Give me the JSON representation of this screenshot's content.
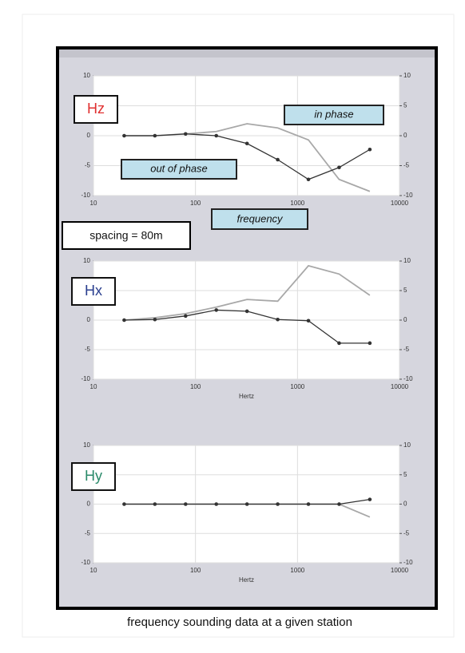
{
  "caption": "frequency sounding data at a given station",
  "spacing_label": "spacing = 80m",
  "frequency_label": "frequency",
  "chart_data": [
    {
      "type": "line",
      "title": "Hz",
      "title_color": "#e03030",
      "log_x": true,
      "grid": true,
      "x": [
        20,
        40,
        80,
        160,
        320,
        640,
        1280,
        2560,
        5120
      ],
      "xlim": [
        10,
        10000
      ],
      "xticks": [
        10,
        100,
        1000,
        10000
      ],
      "ylim": [
        -10,
        10
      ],
      "yticks": [
        -10,
        -5,
        0,
        5,
        10
      ],
      "y2lim": [
        -10,
        10
      ],
      "y2ticks": [
        -10,
        -5,
        0,
        5,
        10
      ],
      "series": [
        {
          "name": "in phase",
          "color": "#a8a8a8",
          "markers": false,
          "values": [
            0,
            0,
            0.3,
            0.7,
            2,
            1.3,
            -0.7,
            -7.3,
            -9.3
          ]
        },
        {
          "name": "out of phase",
          "color": "#333333",
          "markers": true,
          "values": [
            0,
            0,
            0.3,
            0,
            -1.3,
            -4,
            -7.3,
            -5.3,
            -2.3
          ]
        }
      ]
    },
    {
      "type": "line",
      "title": "Hx",
      "title_color": "#2a3f8f",
      "log_x": true,
      "grid": true,
      "xlabel": "Hertz",
      "x": [
        20,
        40,
        80,
        160,
        320,
        640,
        1280,
        2560,
        5120
      ],
      "xlim": [
        10,
        10000
      ],
      "xticks": [
        10,
        100,
        1000,
        10000
      ],
      "ylim": [
        -10,
        10
      ],
      "yticks": [
        -10,
        -5,
        0,
        5,
        10
      ],
      "y2lim": [
        -10,
        10
      ],
      "y2ticks": [
        -10,
        -5,
        0,
        5,
        10
      ],
      "series": [
        {
          "color": "#a8a8a8",
          "markers": false,
          "values": [
            0,
            0.4,
            1.1,
            2.2,
            3.5,
            3.2,
            9.2,
            7.8,
            4.2
          ]
        },
        {
          "color": "#333333",
          "markers": true,
          "values": [
            0,
            0.1,
            0.7,
            1.7,
            1.5,
            0.1,
            -0.1,
            -3.9,
            -3.9
          ]
        }
      ]
    },
    {
      "type": "line",
      "title": "Hy",
      "title_color": "#2a8a6a",
      "log_x": true,
      "grid": true,
      "xlabel": "Hertz",
      "x": [
        20,
        40,
        80,
        160,
        320,
        640,
        1280,
        2560,
        5120
      ],
      "xlim": [
        10,
        10000
      ],
      "xticks": [
        10,
        100,
        1000,
        10000
      ],
      "ylim": [
        -10,
        10
      ],
      "yticks": [
        -10,
        -5,
        0,
        5,
        10
      ],
      "y2lim": [
        -10,
        10
      ],
      "y2ticks": [
        -10,
        -5,
        0,
        5,
        10
      ],
      "series": [
        {
          "color": "#a8a8a8",
          "markers": false,
          "values": [
            0,
            0,
            0,
            0,
            0,
            0,
            0,
            0,
            -2.2
          ]
        },
        {
          "color": "#333333",
          "markers": true,
          "values": [
            0,
            0,
            0,
            0,
            0,
            0,
            0,
            0,
            0.8
          ]
        }
      ]
    }
  ]
}
